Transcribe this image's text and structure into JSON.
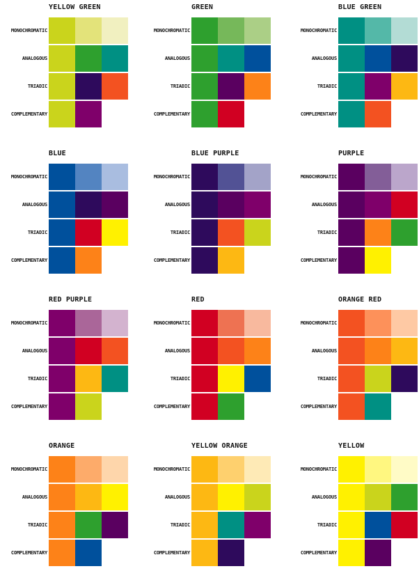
{
  "row_labels": [
    "MONOCHROMATIC",
    "ANALOGOUS",
    "TRIADIC",
    "COMPLEMENTARY"
  ],
  "blocks": [
    {
      "name": "YELLOW GREEN",
      "rows": [
        [
          "#cad41c",
          "#e3e37a",
          "#f1f0c0"
        ],
        [
          "#cad41c",
          "#2ea02e",
          "#009083"
        ],
        [
          "#cad41c",
          "#2e0a5c",
          "#f35221"
        ],
        [
          "#cad41c",
          "#7f006a"
        ]
      ]
    },
    {
      "name": "GREEN",
      "rows": [
        [
          "#2ea02e",
          "#76b85a",
          "#abcf86"
        ],
        [
          "#2ea02e",
          "#009083",
          "#00509c"
        ],
        [
          "#2ea02e",
          "#5a0060",
          "#fd8218"
        ],
        [
          "#2ea02e",
          "#d10022"
        ]
      ]
    },
    {
      "name": "BLUE GREEN",
      "rows": [
        [
          "#009083",
          "#54b8a8",
          "#b3dcd5"
        ],
        [
          "#009083",
          "#00509c",
          "#2e0a5c"
        ],
        [
          "#009083",
          "#7f006a",
          "#fdb813"
        ],
        [
          "#009083",
          "#f35221"
        ]
      ]
    },
    {
      "name": "BLUE",
      "rows": [
        [
          "#00509c",
          "#5384c1",
          "#a9bde0"
        ],
        [
          "#00509c",
          "#2e0a5c",
          "#5a0060"
        ],
        [
          "#00509c",
          "#d10022",
          "#fff100"
        ],
        [
          "#00509c",
          "#fd8218"
        ]
      ]
    },
    {
      "name": "BLUE PURPLE",
      "rows": [
        [
          "#2e0a5c",
          "#525295",
          "#a3a3c8"
        ],
        [
          "#2e0a5c",
          "#5a0060",
          "#7f006a"
        ],
        [
          "#2e0a5c",
          "#f35221",
          "#cad41c"
        ],
        [
          "#2e0a5c",
          "#fdb813"
        ]
      ]
    },
    {
      "name": "PURPLE",
      "rows": [
        [
          "#5a0060",
          "#835e98",
          "#bba6cb"
        ],
        [
          "#5a0060",
          "#7f006a",
          "#d10022"
        ],
        [
          "#5a0060",
          "#fd8218",
          "#2ea02e"
        ],
        [
          "#5a0060",
          "#fff100"
        ]
      ]
    },
    {
      "name": "RED PURPLE",
      "rows": [
        [
          "#7f006a",
          "#aa6699",
          "#d3b3cf"
        ],
        [
          "#7f006a",
          "#d10022",
          "#f35221"
        ],
        [
          "#7f006a",
          "#fdb813",
          "#009083"
        ],
        [
          "#7f006a",
          "#cad41c"
        ]
      ]
    },
    {
      "name": "RED",
      "rows": [
        [
          "#d10022",
          "#ee7252",
          "#f8b99e"
        ],
        [
          "#d10022",
          "#f35221",
          "#fd8218"
        ],
        [
          "#d10022",
          "#fff100",
          "#00509c"
        ],
        [
          "#d10022",
          "#2ea02e"
        ]
      ]
    },
    {
      "name": "ORANGE RED",
      "rows": [
        [
          "#f35221",
          "#fd915a",
          "#fec9a4"
        ],
        [
          "#f35221",
          "#fd8218",
          "#fdb813"
        ],
        [
          "#f35221",
          "#cad41c",
          "#2e0a5c"
        ],
        [
          "#f35221",
          "#009083"
        ]
      ]
    },
    {
      "name": "ORANGE",
      "rows": [
        [
          "#fd8218",
          "#fdab6a",
          "#fed6ab"
        ],
        [
          "#fd8218",
          "#fdb813",
          "#fff100"
        ],
        [
          "#fd8218",
          "#2ea02e",
          "#5a0060"
        ],
        [
          "#fd8218",
          "#00509c"
        ]
      ]
    },
    {
      "name": "YELLOW ORANGE",
      "rows": [
        [
          "#fdb813",
          "#fed06e",
          "#feeab6"
        ],
        [
          "#fdb813",
          "#fff100",
          "#cad41c"
        ],
        [
          "#fdb813",
          "#009083",
          "#7f006a"
        ],
        [
          "#fdb813",
          "#2e0a5c"
        ]
      ]
    },
    {
      "name": "YELLOW",
      "rows": [
        [
          "#fff100",
          "#fff780",
          "#fffbc6"
        ],
        [
          "#fff100",
          "#cad41c",
          "#2ea02e"
        ],
        [
          "#fff100",
          "#00509c",
          "#d10022"
        ],
        [
          "#fff100",
          "#5a0060"
        ]
      ]
    }
  ]
}
